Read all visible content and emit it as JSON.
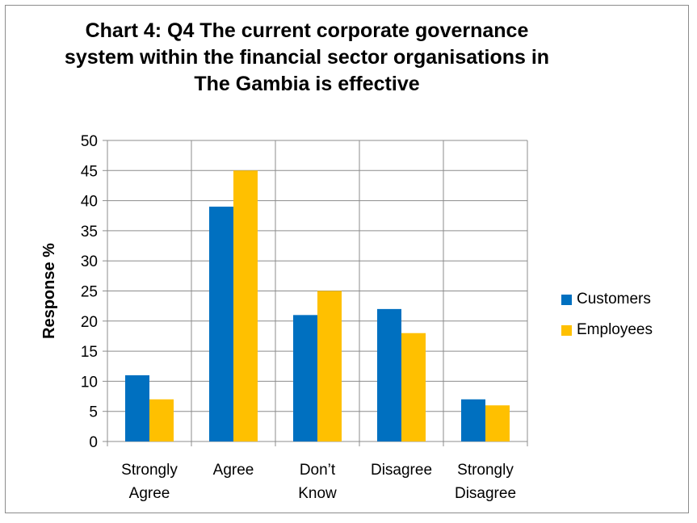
{
  "chart_data": {
    "type": "bar",
    "title_lines": [
      "Chart 4: Q4 The current corporate governance",
      "system within the financial sector organisations in",
      "The Gambia is  effective"
    ],
    "xlabel": "",
    "ylabel": "Response  %",
    "ylim": [
      0,
      50
    ],
    "yticks": [
      0,
      5,
      10,
      15,
      20,
      25,
      30,
      35,
      40,
      45,
      50
    ],
    "categories": [
      [
        "Strongly",
        "Agree"
      ],
      [
        "Agree"
      ],
      [
        "Don’t",
        "Know"
      ],
      [
        "Disagree"
      ],
      [
        "Strongly",
        "Disagree"
      ]
    ],
    "series": [
      {
        "name": "Customers",
        "color": "#0070C0",
        "values": [
          11,
          39,
          21,
          22,
          7
        ]
      },
      {
        "name": "Employees",
        "color": "#FFC000",
        "values": [
          7,
          45,
          25,
          18,
          6
        ]
      }
    ],
    "grid": true,
    "legend_position": "right"
  }
}
